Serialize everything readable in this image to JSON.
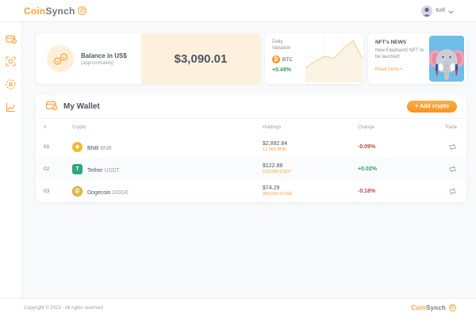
{
  "brand": {
    "coin": "Coin",
    "synch": "Synch"
  },
  "header": {
    "user_name": "Kell"
  },
  "sidebar": {
    "items": [
      {
        "label": "wallet"
      },
      {
        "label": "nft-scan"
      },
      {
        "label": "bitcoin"
      },
      {
        "label": "charts"
      }
    ]
  },
  "balance_card": {
    "title": "Balance in US$",
    "subtitle": "(approximately)",
    "amount": "$3,090.01"
  },
  "variation_card": {
    "label": "Daily Variation",
    "coin": "BTC",
    "change": "+0.49%"
  },
  "news_card": {
    "title": "NFT's NEWS",
    "body": "New ElephantX NFT to be lauched!",
    "link": "Read more +"
  },
  "wallet": {
    "title": "My Wallet",
    "add_button": "+ Add crypto",
    "columns": {
      "index": "#",
      "crypto": "Crypto",
      "holdings": "Holdings",
      "change": "Change",
      "trade": "Trade"
    },
    "rows": [
      {
        "index": "01",
        "name": "BNB",
        "symbol": "BNB",
        "holdings_usd": "$2,892.84",
        "holdings_amount": "12.000 BNB",
        "change": "-0.09%",
        "direction": "down"
      },
      {
        "index": "02",
        "name": "Tether",
        "symbol": "USDT",
        "holdings_usd": "$122.88",
        "holdings_amount": "123.000 USDT",
        "change": "+0.02%",
        "direction": "up"
      },
      {
        "index": "03",
        "name": "Dogecoin",
        "symbol": "DOGE",
        "holdings_usd": "$74.29",
        "holdings_amount": "999.000 DOGE",
        "change": "-0.18%",
        "direction": "down"
      }
    ]
  },
  "footer": {
    "copyright": "Copyright © 2023 - All rights reserved"
  },
  "colors": {
    "accent": "#F9A23C",
    "cream": "#FDF1DE",
    "green": "#33A35B",
    "red": "#BC4840",
    "bnb": "#F3BA2F",
    "tether": "#2EA77B",
    "doge": "#C8A03A",
    "btc": "#F7931A",
    "news_bg": "#6FBDE9"
  },
  "chart_data": {
    "type": "area",
    "title": "BTC Daily Variation sparkline",
    "x": [
      0,
      1,
      2,
      3,
      4,
      5,
      6
    ],
    "values": [
      25,
      42,
      55,
      50,
      75,
      96,
      48
    ],
    "ylim": [
      0,
      100
    ],
    "grid": "dashed",
    "legend": "none",
    "line_color": "#F3CD95",
    "fill_color": "#FBF2E0"
  }
}
